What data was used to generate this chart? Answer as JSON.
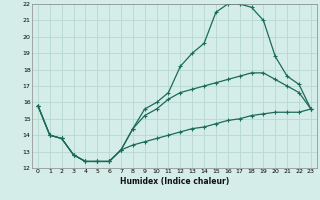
{
  "xlabel": "Humidex (Indice chaleur)",
  "bg_color": "#d4ede8",
  "grid_color": "#b8d8d0",
  "line_color": "#1a6b5a",
  "xlim": [
    -0.5,
    23.5
  ],
  "ylim": [
    12,
    22
  ],
  "xticks": [
    0,
    1,
    2,
    3,
    4,
    5,
    6,
    7,
    8,
    9,
    10,
    11,
    12,
    13,
    14,
    15,
    16,
    17,
    18,
    19,
    20,
    21,
    22,
    23
  ],
  "yticks": [
    12,
    13,
    14,
    15,
    16,
    17,
    18,
    19,
    20,
    21,
    22
  ],
  "line1_x": [
    0,
    1,
    2,
    3,
    4,
    5,
    6,
    7,
    8,
    9,
    10,
    11,
    12,
    13,
    14,
    15,
    16,
    17,
    18,
    19,
    20,
    21,
    22,
    23
  ],
  "line1_y": [
    15.8,
    14.0,
    13.8,
    12.8,
    12.4,
    12.4,
    12.4,
    13.1,
    14.4,
    15.6,
    16.0,
    16.6,
    18.2,
    19.0,
    19.6,
    21.5,
    22.0,
    22.0,
    21.8,
    21.0,
    18.8,
    17.6,
    17.1,
    15.6
  ],
  "line2_x": [
    0,
    1,
    2,
    3,
    4,
    5,
    6,
    7,
    8,
    9,
    10,
    11,
    12,
    13,
    14,
    15,
    16,
    17,
    18,
    19,
    20,
    21,
    22,
    23
  ],
  "line2_y": [
    15.8,
    14.0,
    13.8,
    12.8,
    12.4,
    12.4,
    12.4,
    13.1,
    14.4,
    15.2,
    15.6,
    16.2,
    16.6,
    16.8,
    17.0,
    17.2,
    17.4,
    17.6,
    17.8,
    17.8,
    17.4,
    17.0,
    16.6,
    15.6
  ],
  "line3_x": [
    0,
    1,
    2,
    3,
    4,
    5,
    6,
    7,
    8,
    9,
    10,
    11,
    12,
    13,
    14,
    15,
    16,
    17,
    18,
    19,
    20,
    21,
    22,
    23
  ],
  "line3_y": [
    15.8,
    14.0,
    13.8,
    12.8,
    12.4,
    12.4,
    12.4,
    13.1,
    13.4,
    13.6,
    13.8,
    14.0,
    14.2,
    14.4,
    14.5,
    14.7,
    14.9,
    15.0,
    15.2,
    15.3,
    15.4,
    15.4,
    15.4,
    15.6
  ]
}
